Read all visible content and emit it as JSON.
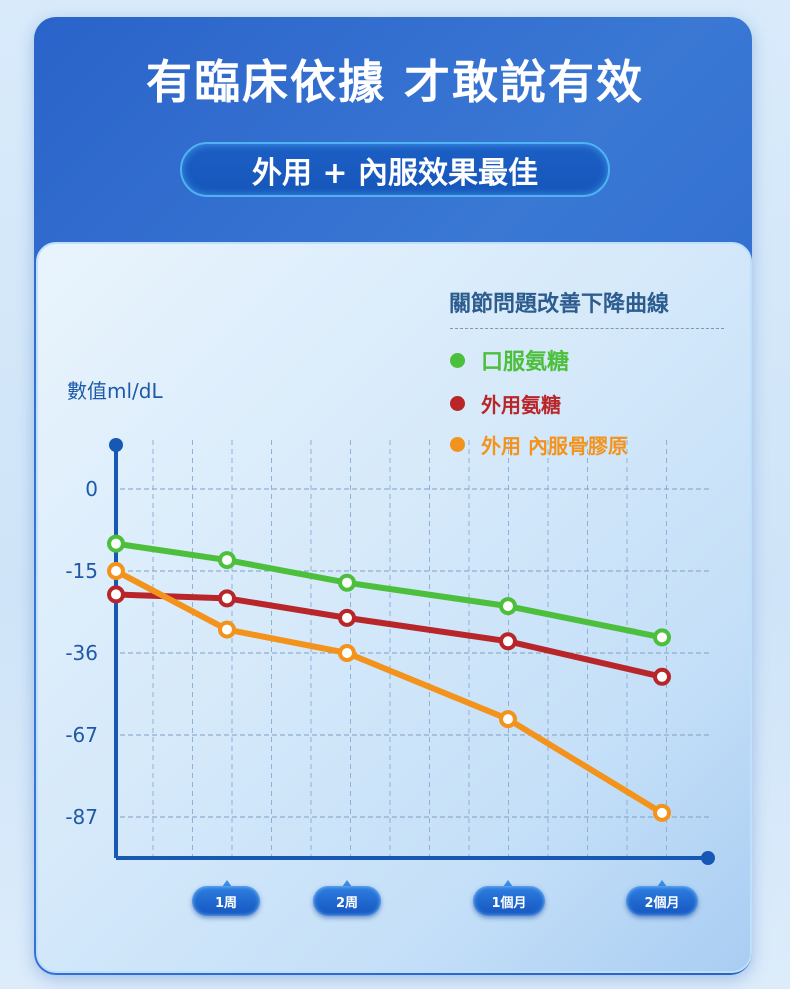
{
  "header": {
    "title": "有臨床依據 才敢說有效",
    "subtitle": "外用 + 內服效果最佳"
  },
  "chart_data": {
    "type": "line",
    "title": "關節問題改善下降曲線",
    "ylabel": "數值ml/dL",
    "xlabel": "",
    "categories": [
      "",
      "1周",
      "2周",
      "1個月",
      "2個月"
    ],
    "yticks": [
      0,
      -15,
      -36,
      -67,
      -87
    ],
    "grid": true,
    "legend_position": "top-right",
    "series": [
      {
        "name": "口服氨糖",
        "color": "#4cbf3c",
        "values": [
          -10,
          -13,
          -18,
          -24,
          -32
        ]
      },
      {
        "name": "外用氨糖",
        "color": "#b8262a",
        "values": [
          -21,
          -22,
          -27,
          -33,
          -45
        ]
      },
      {
        "name": "外用 內服骨膠原",
        "color": "#f3931c",
        "values": [
          -15,
          -30,
          -36,
          -61,
          -86
        ]
      }
    ],
    "axis_color": "#1658b3"
  }
}
